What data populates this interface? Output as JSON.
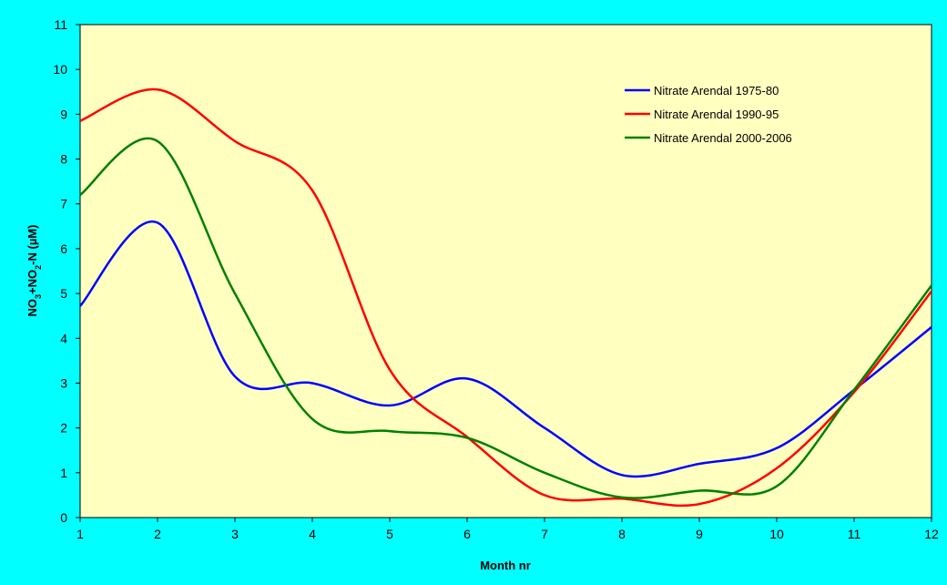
{
  "chart_data": {
    "type": "line",
    "title": "",
    "xlabel": "Month nr",
    "ylabel": {
      "parts": [
        {
          "text": "NO",
          "sub": false
        },
        {
          "text": "3",
          "sub": true
        },
        {
          "text": "+NO",
          "sub": false
        },
        {
          "text": "2",
          "sub": true
        },
        {
          "text": "-N (µM)",
          "sub": false
        }
      ]
    },
    "xlim": [
      1,
      12
    ],
    "ylim": [
      0,
      11
    ],
    "x": [
      1,
      2,
      3,
      4,
      5,
      6,
      7,
      8,
      9,
      10,
      11,
      12
    ],
    "x_ticks": [
      "1",
      "2",
      "3",
      "4",
      "5",
      "6",
      "7",
      "8",
      "9",
      "10",
      "11",
      "12"
    ],
    "y_ticks": [
      "0",
      "1",
      "2",
      "3",
      "4",
      "5",
      "6",
      "7",
      "8",
      "9",
      "10",
      "11"
    ],
    "grid": false,
    "legend_position": "top-right",
    "smooth": true,
    "series": [
      {
        "name": "Nitrate Arendal 1975-80",
        "color": "#0000ff",
        "values": [
          4.72,
          6.58,
          3.15,
          3.0,
          2.5,
          3.1,
          2.0,
          0.95,
          1.2,
          1.55,
          2.85,
          4.25
        ]
      },
      {
        "name": "Nitrate Arendal 1990-95",
        "color": "#ff0000",
        "values": [
          8.85,
          9.55,
          8.4,
          7.3,
          3.3,
          1.8,
          0.5,
          0.42,
          0.3,
          1.1,
          2.8,
          5.05
        ]
      },
      {
        "name": "Nitrate Arendal 2000-2006",
        "color": "#008000",
        "values": [
          7.2,
          8.4,
          5.0,
          2.2,
          1.93,
          1.78,
          1.0,
          0.45,
          0.6,
          0.7,
          2.85,
          5.18
        ]
      }
    ],
    "colors": {
      "background": "#00ffff",
      "plot_area": "#ffffc0",
      "axes": "#000000"
    }
  }
}
